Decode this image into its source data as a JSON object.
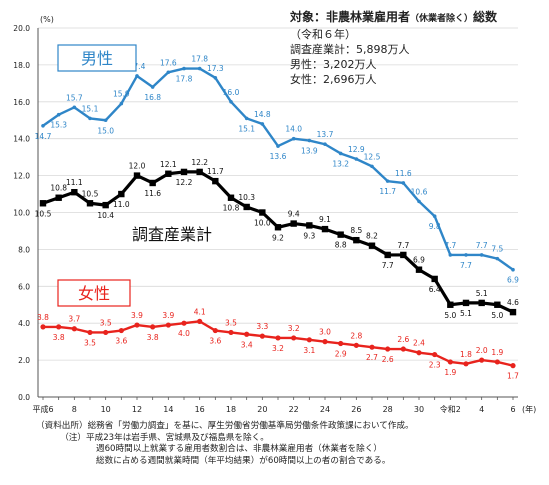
{
  "info": {
    "title": "対象：非農林業雇用者",
    "title_sub": "（休業者除く）",
    "title_end": "総数",
    "era": "（令和６年）",
    "lines": [
      "調査産業計：5,898万人",
      "男性：3,202万人",
      "女性：2,696万人"
    ]
  },
  "notes": {
    "source_label": "（資料出所）",
    "source": "総務省「労働力調査」を基に、厚生労働省労働基準局労働条件政策課において作成。",
    "note_label": "（注）",
    "note1": "平成23年は岩手県、宮城県及び福島県を除く。",
    "note2": "週60時間以上就業する雇用者数割合は、非農林業雇用者（休業者を除く）",
    "note3": "総数に占める週間就業時間（年平均結果）が60時間以上の者の割合である。"
  },
  "chart_data": {
    "type": "line",
    "ylabel": "(%)",
    "xlabel_unit": "(年)",
    "ylim": [
      0,
      20
    ],
    "yticks": [
      "0.0",
      "2.0",
      "4.0",
      "6.0",
      "8.0",
      "10.0",
      "12.0",
      "14.0",
      "16.0",
      "18.0",
      "20.0"
    ],
    "x": [
      "平成6",
      "7",
      "8",
      "9",
      "10",
      "11",
      "12",
      "13",
      "14",
      "15",
      "16",
      "17",
      "18",
      "19",
      "20",
      "21",
      "22",
      "23",
      "24",
      "25",
      "26",
      "27",
      "28",
      "29",
      "30",
      "令和元",
      "令和2",
      "3",
      "4",
      "5",
      "6"
    ],
    "xtick_labels": [
      "平成6",
      "8",
      "10",
      "12",
      "14",
      "16",
      "18",
      "20",
      "22",
      "24",
      "26",
      "28",
      "30",
      "令和2",
      "4",
      "6"
    ],
    "series": [
      {
        "name": "男性",
        "color": "#2f86c8",
        "values": [
          14.7,
          15.3,
          15.7,
          15.1,
          15.0,
          15.9,
          17.4,
          16.8,
          17.6,
          17.8,
          17.8,
          17.3,
          16.0,
          15.1,
          14.8,
          13.6,
          14.0,
          13.9,
          13.7,
          13.2,
          12.9,
          12.5,
          11.7,
          11.6,
          10.6,
          9.8,
          7.7,
          7.7,
          7.7,
          7.5,
          6.9
        ]
      },
      {
        "name": "調査産業計",
        "color": "#000000",
        "values": [
          10.5,
          10.8,
          11.1,
          10.5,
          10.4,
          11.0,
          12.0,
          11.6,
          12.1,
          12.2,
          12.2,
          11.7,
          10.8,
          10.3,
          10.0,
          9.2,
          9.4,
          9.3,
          9.1,
          8.8,
          8.5,
          8.2,
          7.7,
          7.7,
          6.9,
          6.4,
          5.0,
          5.1,
          5.1,
          5.0,
          4.6
        ]
      },
      {
        "name": "女性",
        "color": "#e8231d",
        "values": [
          3.8,
          3.8,
          3.7,
          3.5,
          3.5,
          3.6,
          3.9,
          3.8,
          3.9,
          4.0,
          4.1,
          3.6,
          3.5,
          3.4,
          3.3,
          3.2,
          3.2,
          3.1,
          3.0,
          2.9,
          2.8,
          2.7,
          2.6,
          2.6,
          2.4,
          2.3,
          1.9,
          1.8,
          2.0,
          1.9,
          1.7
        ]
      }
    ],
    "label_positions": {
      "男性": [
        "b",
        "b",
        "a",
        "a",
        "b",
        "a",
        "a",
        "b",
        "a",
        "b",
        "a",
        "a",
        "a",
        "b",
        "a",
        "b",
        "a",
        "b",
        "a",
        "b",
        "a",
        "a",
        "b",
        "a",
        "a",
        "b",
        "a",
        "b",
        "a",
        "a",
        "b"
      ],
      "調査産業計": [
        "b",
        "a",
        "a",
        "a",
        "b",
        "b",
        "a",
        "b",
        "a",
        "b",
        "a",
        "a",
        "b",
        "a",
        "b",
        "b",
        "a",
        "b",
        "a",
        "b",
        "a",
        "a",
        "b",
        "a",
        "a",
        "b",
        "b",
        "b",
        "a",
        "b",
        "a"
      ],
      "女性": [
        "a",
        "b",
        "a",
        "b",
        "a",
        "b",
        "a",
        "b",
        "a",
        "b",
        "a",
        "b",
        "a",
        "b",
        "a",
        "b",
        "a",
        "b",
        "a",
        "b",
        "a",
        "b",
        "b",
        "a",
        "a",
        "b",
        "b",
        "a",
        "a",
        "a",
        "b"
      ]
    },
    "grid": "horizontal",
    "legend": "inline-boxes"
  }
}
